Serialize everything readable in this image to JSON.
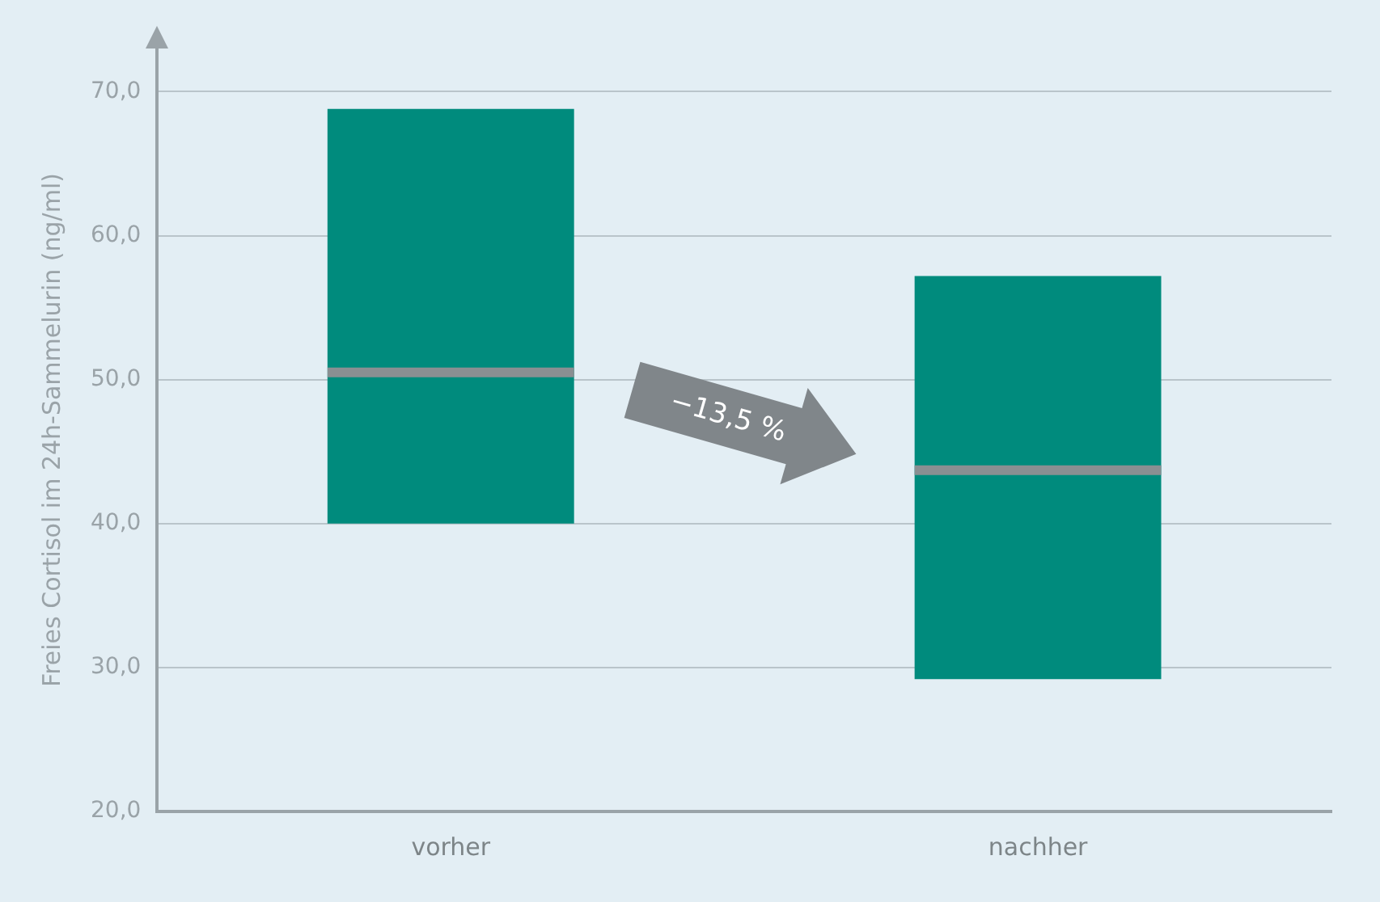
{
  "chart_data": {
    "type": "box",
    "ylabel": "Freies Cortisol im 24h-Sammelurin (ng/ml)",
    "categories": [
      "vorher",
      "nachher"
    ],
    "boxes": [
      {
        "low": 40.0,
        "q1": 40.0,
        "median": 50.5,
        "q3": 68.8,
        "high": 68.8
      },
      {
        "low": 29.2,
        "q1": 29.2,
        "median": 43.7,
        "q3": 57.2,
        "high": 57.2
      }
    ],
    "color": "#008b7d",
    "ylim": [
      20,
      73
    ],
    "yticks": [
      {
        "value": 20,
        "label": "20,0"
      },
      {
        "value": 30,
        "label": "30,0"
      },
      {
        "value": 40,
        "label": "40,0"
      },
      {
        "value": 50,
        "label": "50,0"
      },
      {
        "value": 60,
        "label": "60,0"
      },
      {
        "value": 70,
        "label": "70,0"
      }
    ],
    "grid": "y",
    "annotations": [
      "−13,5 %"
    ]
  }
}
